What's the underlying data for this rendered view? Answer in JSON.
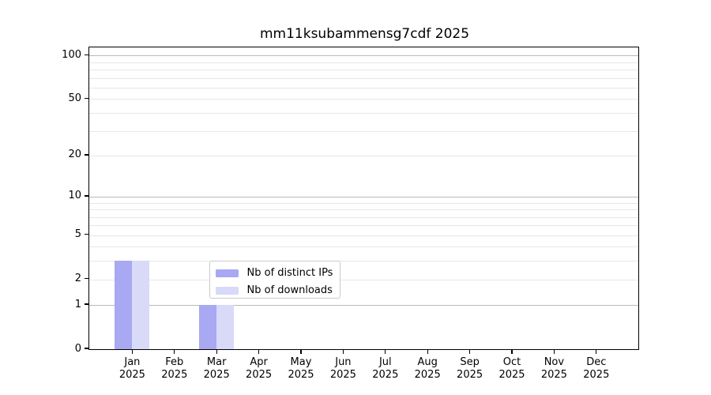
{
  "chart_data": {
    "type": "bar",
    "title": "mm11ksubammensg7cdf 2025",
    "categories": [
      "Jan 2025",
      "Feb 2025",
      "Mar 2025",
      "Apr 2025",
      "May 2025",
      "Jun 2025",
      "Jul 2025",
      "Aug 2025",
      "Sep 2025",
      "Oct 2025",
      "Nov 2025",
      "Dec 2025"
    ],
    "series": [
      {
        "name": "Nb of distinct IPs",
        "color": "#a8a8f3",
        "values": [
          3,
          0,
          1,
          0,
          0,
          0,
          0,
          0,
          0,
          0,
          0,
          0
        ]
      },
      {
        "name": "Nb of downloads",
        "color": "#d9d9f8",
        "values": [
          3,
          0,
          1,
          0,
          0,
          0,
          0,
          0,
          0,
          0,
          0,
          0
        ]
      }
    ],
    "y_axis": {
      "scale": "log10(1+v)",
      "ticks": [
        0,
        1,
        2,
        5,
        10,
        20,
        50,
        100
      ],
      "decade_ticks": [
        1,
        10,
        100
      ],
      "minor_gridlines": [
        3,
        4,
        6,
        7,
        8,
        9,
        30,
        40,
        60,
        70,
        80,
        90
      ],
      "ylim": [
        0,
        114
      ]
    },
    "x_axis": {
      "label_year": "2025"
    },
    "legend": {
      "position": "lower-center"
    },
    "colors": {
      "decade_grid": "#b9b9b9",
      "light_grid": "#e7e7e7",
      "axis": "#000000",
      "background": "#ffffff"
    }
  }
}
